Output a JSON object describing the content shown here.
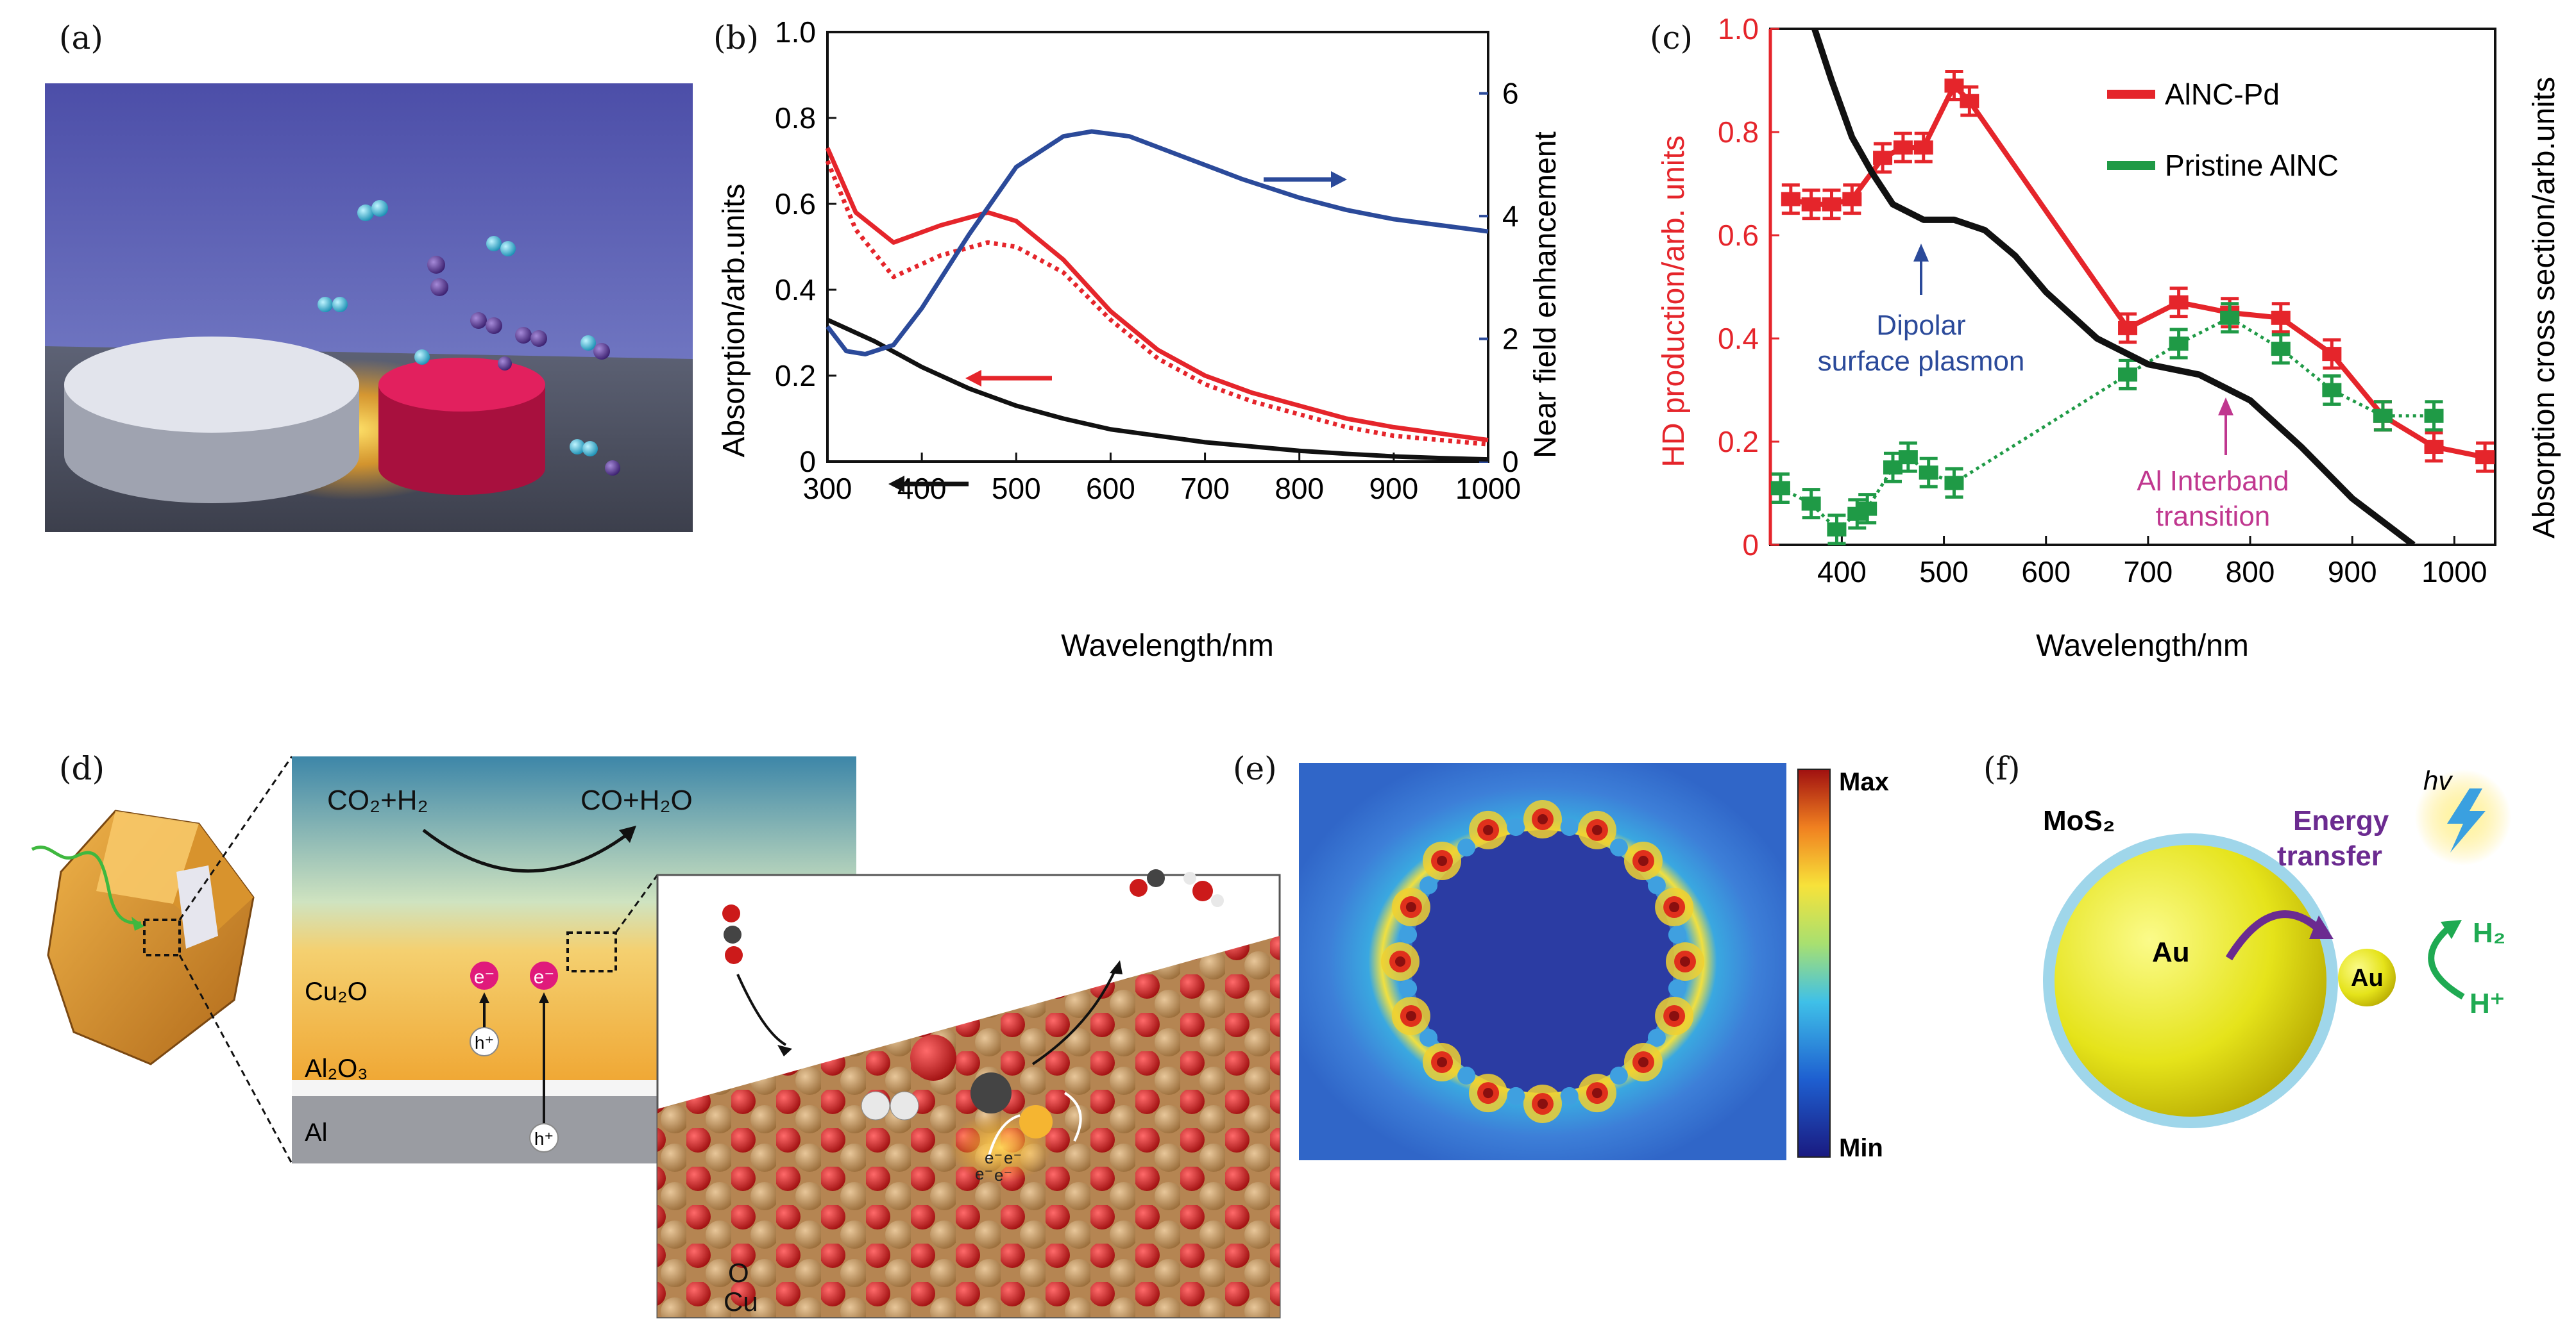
{
  "panel_labels": {
    "a": "(a)",
    "b": "(b)",
    "c": "(c)",
    "d": "(d)",
    "e": "(e)",
    "f": "(f)"
  },
  "colors": {
    "red": "#e5252b",
    "blue": "#2b4a9a",
    "black": "#111111",
    "green": "#1f9a46",
    "magenta": "#c0378f",
    "purple": "#6b2b90"
  },
  "panel_b": {
    "xlabel": "Wavelength/nm",
    "ylabel_left": "Absorption/arb.units",
    "ylabel_right": "Near field enhancement",
    "x_ticks": [
      "300",
      "400",
      "500",
      "600",
      "700",
      "800",
      "900",
      "1000"
    ],
    "y_ticks_left": [
      "0",
      "0.2",
      "0.4",
      "0.6",
      "0.8",
      "1.0"
    ],
    "y_ticks_right": [
      "0",
      "2",
      "4",
      "6"
    ]
  },
  "panel_c": {
    "xlabel": "Wavelength/nm",
    "ylabel_left": "HD production/arb. units",
    "ylabel_right": "Absorption cross section/arb.units",
    "x_ticks": [
      "400",
      "500",
      "600",
      "700",
      "800",
      "900",
      "1000"
    ],
    "y_ticks_left": [
      "0",
      "0.2",
      "0.4",
      "0.6",
      "0.8",
      "1.0"
    ],
    "legend": [
      "AlNC-Pd",
      "Pristine AlNC"
    ],
    "annotation_dipolar": [
      "Dipolar",
      "surface plasmon"
    ],
    "annotation_interband": [
      "Al Interband",
      "transition"
    ]
  },
  "panel_d": {
    "reaction_left": "CO₂+H₂",
    "reaction_right": "CO+H₂O",
    "layers": [
      "Cu₂O",
      "Al₂O₃",
      "Al"
    ],
    "electron": "e⁻",
    "hole": "h⁺",
    "atom_labels": [
      "O",
      "Cu"
    ]
  },
  "panel_e": {
    "max_label": "Max",
    "min_label": "Min"
  },
  "panel_f": {
    "mos2_label": "MoS₂",
    "au_big": "Au",
    "au_small": "Au",
    "energy_transfer": [
      "Energy",
      "transfer"
    ],
    "hv": "hv",
    "h2": "H₂",
    "hplus": "H⁺"
  },
  "chart_data": [
    {
      "type": "line",
      "panel": "b",
      "xlabel": "Wavelength/nm",
      "ylabel": "Absorption/arb.units",
      "y2label": "Near field enhancement",
      "xlim": [
        300,
        1000
      ],
      "ylim": [
        0,
        1.0
      ],
      "y2lim": [
        0,
        7
      ],
      "series": [
        {
          "color": "#e5252b",
          "style": "solid",
          "axis": "left",
          "x": [
            300,
            330,
            370,
            420,
            470,
            500,
            550,
            600,
            650,
            700,
            750,
            800,
            850,
            900,
            950,
            1000
          ],
          "y": [
            0.73,
            0.58,
            0.51,
            0.55,
            0.58,
            0.56,
            0.47,
            0.35,
            0.26,
            0.2,
            0.16,
            0.13,
            0.1,
            0.08,
            0.065,
            0.05
          ]
        },
        {
          "color": "#e5252b",
          "style": "dotted",
          "axis": "left",
          "x": [
            300,
            330,
            370,
            420,
            470,
            500,
            550,
            600,
            650,
            700,
            750,
            800,
            850,
            900,
            950,
            1000
          ],
          "y": [
            0.7,
            0.54,
            0.43,
            0.48,
            0.51,
            0.5,
            0.44,
            0.33,
            0.24,
            0.18,
            0.14,
            0.11,
            0.08,
            0.06,
            0.05,
            0.04
          ]
        },
        {
          "color": "#111111",
          "style": "solid",
          "axis": "left",
          "x": [
            300,
            350,
            400,
            450,
            500,
            550,
            600,
            650,
            700,
            750,
            800,
            850,
            900,
            950,
            1000
          ],
          "y": [
            0.33,
            0.28,
            0.22,
            0.17,
            0.13,
            0.1,
            0.075,
            0.06,
            0.045,
            0.035,
            0.025,
            0.018,
            0.012,
            0.008,
            0.005
          ]
        },
        {
          "color": "#2b4a9a",
          "style": "solid",
          "axis": "right",
          "x": [
            300,
            320,
            340,
            370,
            400,
            450,
            500,
            550,
            580,
            620,
            680,
            740,
            800,
            850,
            900,
            950,
            1000
          ],
          "y": [
            2.2,
            1.8,
            1.75,
            1.9,
            2.5,
            3.7,
            4.8,
            5.3,
            5.38,
            5.3,
            4.95,
            4.6,
            4.3,
            4.1,
            3.95,
            3.85,
            3.75
          ]
        }
      ]
    },
    {
      "type": "line",
      "panel": "c",
      "xlabel": "Wavelength/nm",
      "ylabel": "HD production/arb. units",
      "y2label": "Absorption cross section/arb.units",
      "xlim": [
        330,
        1040
      ],
      "ylim": [
        0,
        1.0
      ],
      "series": [
        {
          "name": "AlNC-Pd",
          "color": "#e5252b",
          "style": "solid",
          "markers": true,
          "x": [
            350,
            370,
            390,
            410,
            440,
            460,
            480,
            510,
            525,
            680,
            730,
            780,
            830,
            880,
            930,
            980,
            1030
          ],
          "y": [
            0.67,
            0.66,
            0.66,
            0.67,
            0.75,
            0.77,
            0.77,
            0.89,
            0.86,
            0.42,
            0.47,
            0.45,
            0.44,
            0.37,
            0.25,
            0.19,
            0.17
          ]
        },
        {
          "name": "Pristine AlNC",
          "color": "#1f9a46",
          "style": "dotted",
          "markers": true,
          "x": [
            340,
            370,
            395,
            415,
            425,
            450,
            465,
            485,
            510,
            680,
            730,
            780,
            830,
            880,
            930,
            980
          ],
          "y": [
            0.11,
            0.08,
            0.03,
            0.06,
            0.07,
            0.15,
            0.17,
            0.14,
            0.12,
            0.33,
            0.39,
            0.44,
            0.38,
            0.3,
            0.25,
            0.25
          ]
        },
        {
          "color": "#111111",
          "style": "solid",
          "markers": false,
          "x": [
            370,
            390,
            410,
            430,
            450,
            480,
            510,
            540,
            570,
            600,
            650,
            700,
            750,
            800,
            850,
            900,
            960
          ],
          "y": [
            1.02,
            0.9,
            0.79,
            0.72,
            0.66,
            0.63,
            0.63,
            0.61,
            0.56,
            0.49,
            0.4,
            0.35,
            0.33,
            0.28,
            0.19,
            0.09,
            0.0
          ]
        }
      ]
    }
  ]
}
